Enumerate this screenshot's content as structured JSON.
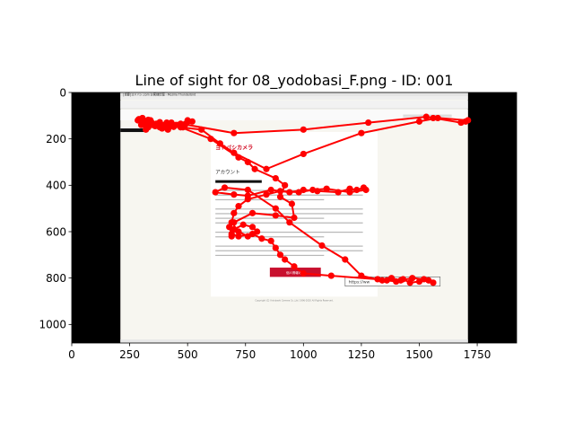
{
  "chart_data": {
    "type": "scatter",
    "title": "Line of sight for 08_yodobasi_F.png - ID: 001",
    "xlabel": "",
    "ylabel": "",
    "xlim": [
      0,
      1920
    ],
    "ylim": [
      1080,
      0
    ],
    "x_ticks": [
      0,
      250,
      500,
      750,
      1000,
      1250,
      1500,
      1750
    ],
    "y_ticks": [
      0,
      200,
      400,
      600,
      800,
      1000
    ],
    "grid": false,
    "y_inverted": true,
    "background_image": {
      "x_range": [
        0,
        1920
      ],
      "y_range": [
        0,
        1080
      ],
      "content_x_range": [
        210,
        1710
      ],
      "window_title": "[重要]ヨドバシ.com お客様情報 - Mozilla Thunderbird",
      "logo_text": "ヨドバシカメラ",
      "heading": "アカウント",
      "button_label": "個人情報の再",
      "url_box": "https://ww",
      "footer": "Copyright (C) Yodobashi Camera Co.,Ltd. 1996-2020 All Rights Reserved."
    },
    "series": [
      {
        "color": "#ff0000",
        "points": [
          [
            290,
            115
          ],
          [
            300,
            125
          ],
          [
            315,
            138
          ],
          [
            330,
            145
          ],
          [
            345,
            130
          ],
          [
            360,
            140
          ],
          [
            380,
            128
          ],
          [
            395,
            145
          ],
          [
            410,
            130
          ],
          [
            425,
            138
          ],
          [
            440,
            148
          ],
          [
            415,
            160
          ],
          [
            390,
            155
          ],
          [
            365,
            135
          ],
          [
            340,
            120
          ],
          [
            320,
            130
          ],
          [
            470,
            135
          ],
          [
            500,
            120
          ],
          [
            520,
            125
          ],
          [
            480,
            150
          ],
          [
            450,
            140
          ],
          [
            420,
            150
          ],
          [
            360,
            145
          ],
          [
            330,
            150
          ],
          [
            320,
            160
          ],
          [
            300,
            140
          ],
          [
            285,
            120
          ],
          [
            305,
            110
          ],
          [
            330,
            118
          ],
          [
            350,
            140
          ],
          [
            380,
            150
          ],
          [
            400,
            140
          ],
          [
            430,
            130
          ],
          [
            460,
            140
          ],
          [
            490,
            138
          ],
          [
            700,
            175
          ],
          [
            1000,
            160
          ],
          [
            1280,
            130
          ],
          [
            1530,
            105
          ],
          [
            1560,
            110
          ],
          [
            1680,
            130
          ],
          [
            1700,
            125
          ],
          [
            1710,
            120
          ],
          [
            1580,
            110
          ],
          [
            1500,
            125
          ],
          [
            1250,
            175
          ],
          [
            1000,
            265
          ],
          [
            840,
            330
          ],
          [
            700,
            260
          ],
          [
            640,
            220
          ],
          [
            560,
            160
          ],
          [
            470,
            150
          ],
          [
            600,
            200
          ],
          [
            720,
            280
          ],
          [
            760,
            300
          ],
          [
            790,
            330
          ],
          [
            880,
            370
          ],
          [
            920,
            400
          ],
          [
            900,
            450
          ],
          [
            950,
            480
          ],
          [
            960,
            540
          ],
          [
            880,
            530
          ],
          [
            780,
            520
          ],
          [
            700,
            560
          ],
          [
            680,
            580
          ],
          [
            690,
            610
          ],
          [
            720,
            620
          ],
          [
            780,
            610
          ],
          [
            820,
            630
          ],
          [
            860,
            640
          ],
          [
            880,
            670
          ],
          [
            900,
            700
          ],
          [
            920,
            720
          ],
          [
            960,
            750
          ],
          [
            1000,
            780
          ],
          [
            1120,
            790
          ],
          [
            1320,
            805
          ],
          [
            1360,
            810
          ],
          [
            1400,
            815
          ],
          [
            1430,
            805
          ],
          [
            1460,
            820
          ],
          [
            1500,
            815
          ],
          [
            1540,
            810
          ],
          [
            1560,
            820
          ],
          [
            1520,
            805
          ],
          [
            1470,
            800
          ],
          [
            1420,
            810
          ],
          [
            1380,
            800
          ],
          [
            1340,
            810
          ],
          [
            1250,
            790
          ],
          [
            1180,
            720
          ],
          [
            1080,
            660
          ],
          [
            940,
            560
          ],
          [
            880,
            500
          ],
          [
            760,
            420
          ],
          [
            660,
            410
          ],
          [
            620,
            430
          ],
          [
            700,
            440
          ],
          [
            760,
            445
          ],
          [
            860,
            420
          ],
          [
            940,
            430
          ],
          [
            1000,
            420
          ],
          [
            1060,
            425
          ],
          [
            1150,
            430
          ],
          [
            1200,
            415
          ],
          [
            1230,
            420
          ],
          [
            1260,
            410
          ],
          [
            1270,
            420
          ],
          [
            1200,
            430
          ],
          [
            1100,
            415
          ],
          [
            1040,
            420
          ],
          [
            980,
            430
          ],
          [
            900,
            425
          ],
          [
            840,
            440
          ],
          [
            760,
            460
          ],
          [
            720,
            490
          ],
          [
            700,
            520
          ],
          [
            690,
            560
          ],
          [
            720,
            600
          ],
          [
            760,
            620
          ],
          [
            800,
            600
          ],
          [
            780,
            580
          ],
          [
            740,
            570
          ],
          [
            700,
            590
          ],
          [
            690,
            620
          ]
        ]
      }
    ]
  }
}
